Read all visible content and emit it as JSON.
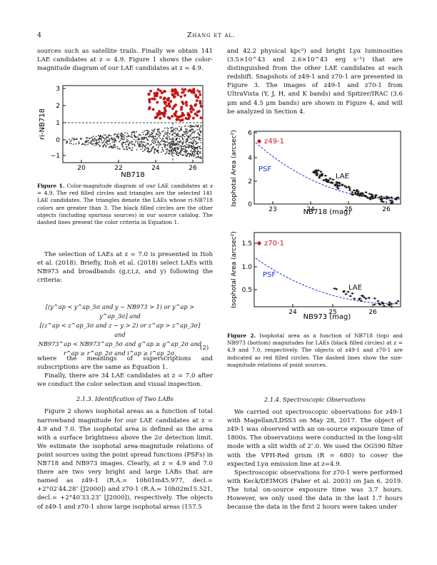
{
  "header": {
    "page_number": "4",
    "running_title": "Zhang et al."
  },
  "left": {
    "p_intro": "sources such as satellite trails. Finally we obtain 141 LAE candidates at z = 4.9. Figure 1 shows the color-magnitude diagram of our LAE candidates at z = 4.9.",
    "fig1": {
      "xlabel": "NB718",
      "ylabel": "ri-NB718",
      "xticks": [
        "20",
        "22",
        "24",
        "26"
      ],
      "yticks": [
        "3",
        "2",
        "1",
        "0",
        "−1"
      ],
      "caption_label": "Figure 1.",
      "caption": "Color-magnitude diagram of our LAE candidates at z = 4.9. The red filled circles and triangles are the selected 141 LAE candidates. The triangles denote the LAEs whose ri-NB718 colors are greater than 3. The black filled circles are the other objects (including spurious sources) in our source catalog. The dashed lines present the color criteria in Equation 1."
    },
    "p_sel1": "The selection of LAEs at z = 7.0 is presented in Itoh et al. (2018). Briefly, Itoh et al. (2018) select LAEs with NB973 and broadbands (g,r,i,z, and y) following the criteria:",
    "eq_lines": [
      "[(y^ap < y^ap_5σ and y − NB973 > 1) or y^ap > y^ap_3σ] and",
      "[(z^ap < z^ap_3σ and z − y > 2) or z^ap > z^ap_3σ] and",
      "NB973^ap < NB973^ap_5σ and g^ap ≥ g^ap_2σ and",
      "r^ap ≥ r^ap_2σ and i^ap ≥ i^ap_2σ,"
    ],
    "eq_number": "(2)",
    "p_sel2": "where the meanings of superscriptions and subscriptions are the same as Equation 1.",
    "p_sel3": "Finally, there are 34 LAE candidates at z = 7.0 after we conduct the color selection and visual inspection.",
    "sect_213": "2.1.3. Identification of Two LABs",
    "p_213": "Figure 2 shows isophotal areas as a function of total narrowband magnitude for our LAE candidates at z = 4.9 and 7.0. The isophotal area is defined as the area with a surface brightness above the 2σ detection limit. We estimate the isophotal area-magnitude relations of point sources using the point spread functions (PSFs) in NB718 and NB973 images. Clearly, at z = 4.9 and 7.0 there are two very bright and large LABs that are named as z49-1 (R.A.= 10h01m45.977, decl.= +2°02′44.28″ [J2000]) and z70-1 (R.A.= 10h02m15.521, decl.= +2°40′33.23″ [J2000]), respectively. The objects of z49-1 and z70-1 show large isophotal areas (157.5"
  },
  "right": {
    "p_cont": "and 42.2 physical kpc²) and bright Lyα luminosities (3.5×10^43 and 2.6×10^43 erg s⁻¹) that are distinguished from the other LAE candidates at each redshift. Snapshots of z49-1 and z70-1 are presented in Figure 3. The images of z49-1 and z70-1 from UltraVista (Y, J, H, and K bands) and Spitzer/IRAC (3.6 μm and 4.5 μm bands) are shown in Figure 4, and will be analyzed in Section 4.",
    "fig2_top": {
      "ylabel": "Isophotal Area (arcsec²)",
      "xlabel": "NB718 (mag)",
      "obj": "z49-1",
      "psf": "PSF",
      "lae": "LAE",
      "xticks": [
        "23",
        "24",
        "25",
        "26"
      ],
      "yticks": [
        "6",
        "4",
        "2",
        "0"
      ]
    },
    "fig2_bot": {
      "ylabel": "Isophotal Area (arcsec²)",
      "xlabel": "NB973 (mag)",
      "obj": "z70-1",
      "psf": "PSF",
      "lae": "LAE",
      "xticks": [
        "24",
        "25",
        "26"
      ],
      "yticks": [
        "1.5",
        "1.0",
        "0.5"
      ]
    },
    "fig2_caption_label": "Figure 2.",
    "fig2_caption": "Isophotal area as a function of NB718 (top) and NB973 (bottom) magnitudes for LAEs (black filled circles) at z = 4.9 and 7.0, respectively. The objects of z49-1 and z70-1 are indicated as red filled circles. The dashed lines show the size-magnitude relations of point sources.",
    "sect_214": "2.1.4. Spectroscopic Observations",
    "p_214a": "We carried out spectroscopic observations for z49-1 with Magellan/LDSS3 on May 28, 2017. The object of z49-1 was observed with an on-source exposure time of 1800s. The observations were conducted in the long-slit mode with a slit width of 2″.0. We used the OG590 filter with the VPH-Red grism (R ≃ 680) to cover the expected Lyα emission line at z=4.9.",
    "p_214b": "Spectroscopic observations for z70-1 were performed with Keck/DEIMOS (Faber et al. 2003) on Jan 6, 2019. The total on-source exposure time was 3.7 hours. However, we only used the data in the last 1.7 hours because the data in the first 2 hours were taken under"
  },
  "colors": {
    "red": "#d01818",
    "psf_blue": "#1f2fd0",
    "black": "#111111"
  }
}
